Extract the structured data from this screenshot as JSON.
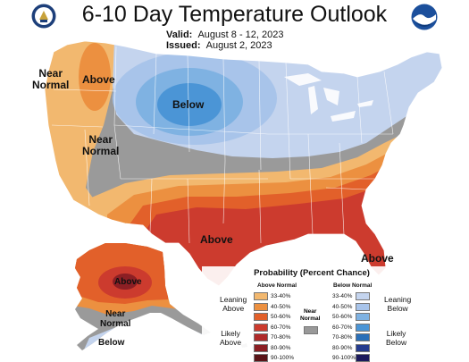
{
  "title": "6-10 Day Temperature Outlook",
  "valid_label": "Valid:",
  "valid_dates": "August 8 - 12, 2023",
  "issued_label": "Issued:",
  "issued_date": "August 2, 2023",
  "map_labels": {
    "near_normal_west": "Near\nNormal",
    "above_northwest": "Above",
    "below_north": "Below",
    "near_normal_central": "Near\nNormal",
    "above_south": "Above",
    "above_southeast": "Above",
    "above_alaska": "Above",
    "near_normal_alaska": "Near\nNormal",
    "below_alaska": "Below"
  },
  "legend": {
    "title": "Probability (Percent Chance)",
    "above_header": "Above Normal",
    "below_header": "Below Normal",
    "near_normal": "Near\nNormal",
    "leaning_above": "Leaning\nAbove",
    "likely_above": "Likely\nAbove",
    "leaning_below": "Leaning\nBelow",
    "likely_below": "Likely\nBelow",
    "ranges": [
      "33-40%",
      "40-50%",
      "50-60%",
      "60-70%",
      "70-80%",
      "80-90%",
      "90-100%"
    ],
    "above_colors": [
      "#f2b86f",
      "#ec9040",
      "#e2602a",
      "#cc3b2e",
      "#b02a2a",
      "#8c1f24",
      "#5a1418"
    ],
    "below_colors": [
      "#c4d4ee",
      "#a8c4ea",
      "#7fb2e2",
      "#4b95d6",
      "#2a6fb8",
      "#253c8e",
      "#1c1a5c"
    ],
    "near_normal_color": "#999999"
  }
}
